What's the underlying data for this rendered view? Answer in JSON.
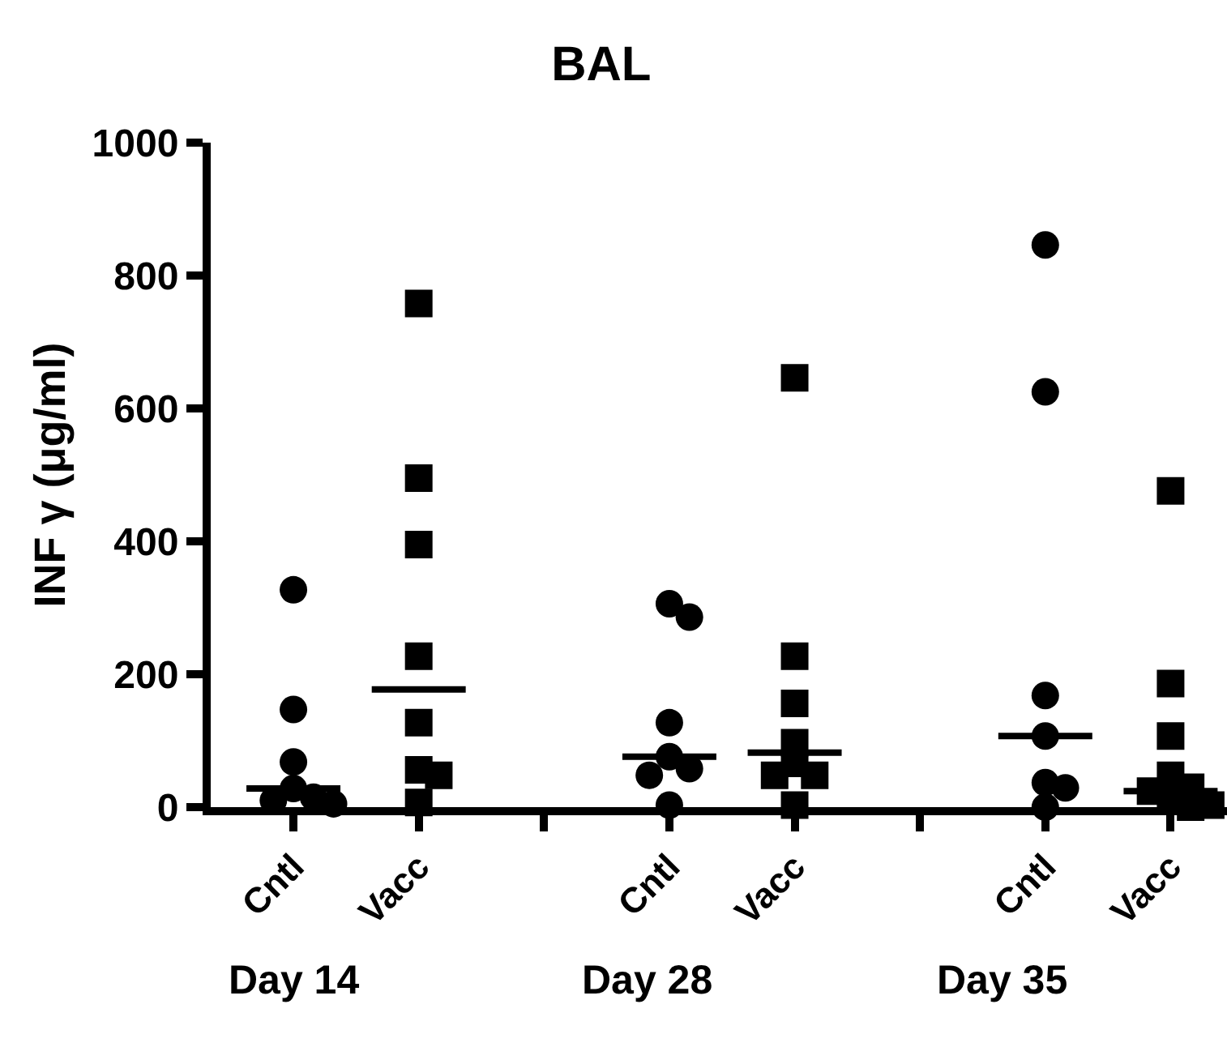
{
  "chart_data": {
    "type": "scatter",
    "title": "BAL",
    "ylabel": "INF γ (μg/ml)",
    "categories": [
      "Cntl",
      "Vacc",
      null,
      "Cntl",
      "Vacc",
      null,
      "Cntl",
      "Vacc"
    ],
    "series": [
      {
        "marker": "circle",
        "color": "#000000",
        "values": [
          327,
          null,
          null,
          306,
          null,
          null,
          846,
          null
        ]
      },
      {
        "marker": "circle",
        "color": "#000000",
        "values": [
          147,
          null,
          null,
          286,
          null,
          null,
          625,
          null
        ]
      },
      {
        "marker": "circle",
        "color": "#000000",
        "values": [
          68,
          null,
          null,
          127,
          null,
          null,
          168,
          null
        ]
      },
      {
        "marker": "circle",
        "color": "#000000",
        "values": [
          28,
          null,
          null,
          76,
          null,
          null,
          107,
          null
        ]
      },
      {
        "marker": "circle",
        "color": "#000000",
        "values": [
          15,
          null,
          null,
          58,
          null,
          null,
          37,
          null
        ]
      },
      {
        "marker": "circle",
        "color": "#000000",
        "values": [
          10,
          null,
          null,
          48,
          null,
          null,
          29,
          null
        ]
      },
      {
        "marker": "circle",
        "color": "#000000",
        "values": [
          5,
          null,
          null,
          3,
          null,
          null,
          0,
          null
        ]
      },
      {
        "marker": "square",
        "color": "#000000",
        "values": [
          null,
          758,
          null,
          null,
          646,
          null,
          null,
          476
        ]
      },
      {
        "marker": "square",
        "color": "#000000",
        "values": [
          null,
          495,
          null,
          null,
          227,
          null,
          null,
          186
        ]
      },
      {
        "marker": "square",
        "color": "#000000",
        "values": [
          null,
          395,
          null,
          null,
          156,
          null,
          null,
          107
        ]
      },
      {
        "marker": "square",
        "color": "#000000",
        "values": [
          null,
          227,
          null,
          null,
          97,
          null,
          null,
          48
        ]
      },
      {
        "marker": "square",
        "color": "#000000",
        "values": [
          null,
          127,
          null,
          null,
          66,
          null,
          null,
          30
        ]
      },
      {
        "marker": "square",
        "color": "#000000",
        "values": [
          null,
          56,
          null,
          null,
          48,
          null,
          null,
          24
        ]
      },
      {
        "marker": "square",
        "color": "#000000",
        "values": [
          null,
          48,
          null,
          null,
          48,
          null,
          null,
          10
        ]
      },
      {
        "marker": "square",
        "color": "#000000",
        "values": [
          null,
          7,
          null,
          null,
          3,
          null,
          null,
          3
        ]
      },
      {
        "marker": "square",
        "color": "#000000",
        "values": [
          null,
          null,
          null,
          null,
          null,
          null,
          null,
          0
        ]
      },
      {
        "type": "box",
        "color": "#000000",
        "boxes": [
          {
            "low": 28,
            "q1": 28,
            "median": 28,
            "q3": 28,
            "high": 28
          },
          {
            "low": 177,
            "q1": 177,
            "median": 177,
            "q3": 177,
            "high": 177
          },
          null,
          {
            "low": 76,
            "q1": 76,
            "median": 76,
            "q3": 76,
            "high": 76
          },
          {
            "low": 82,
            "q1": 82,
            "median": 82,
            "q3": 82,
            "high": 82
          },
          null,
          {
            "low": 107,
            "q1": 107,
            "median": 107,
            "q3": 107,
            "high": 107
          },
          {
            "low": 24,
            "q1": 24,
            "median": 24,
            "q3": 24,
            "high": 24
          }
        ]
      }
    ],
    "annotations": [
      "Day 14",
      "Day 28",
      "Day 35"
    ],
    "ylim": [
      0,
      1000
    ],
    "yticks": [
      0,
      200,
      400,
      600,
      800,
      1000
    ]
  }
}
